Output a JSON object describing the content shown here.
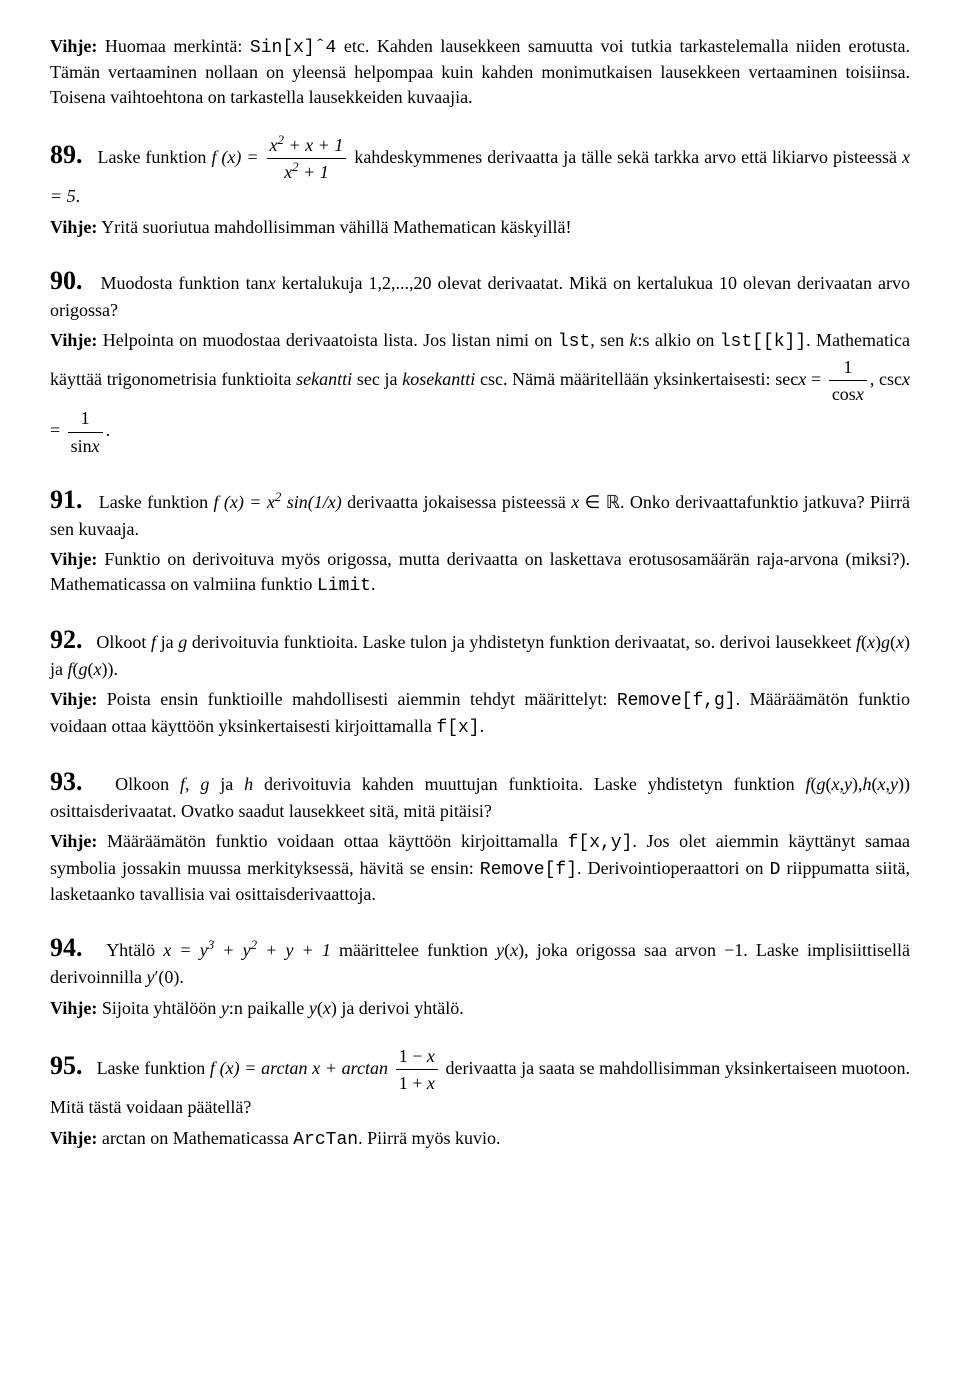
{
  "intro_hint": {
    "label": "Vihje:",
    "part1": "Huomaa merkintä: ",
    "code": "Sin[x]ˆ4",
    "part2": " etc. Kahden lausekkeen samuutta voi tutkia tarkastelemalla niiden erotusta. Tämän vertaaminen nollaan on yleensä helpompaa kuin kahden monimutkaisen lausekkeen vertaaminen toisiinsa. Toisena vaihtoehtona on tarkastella lausekkeiden kuvaajia."
  },
  "p89": {
    "num": "89.",
    "a": "Laske funktion ",
    "fx": "f (x) = ",
    "frac_num": "x² + x + 1",
    "frac_den": "x² + 1",
    "b": " kahdeskymmenes derivaatta ja tälle sekä tarkka arvo että likiarvo pisteessä ",
    "c": "x = 5.",
    "hint_label": "Vihje:",
    "hint": " Yritä suoriutua mahdollisimman vähillä Mathematican käskyillä!"
  },
  "p90": {
    "num": "90.",
    "a": "Muodosta funktion tan",
    "b": " kertalukuja 1,2,...,20 olevat derivaatat. Mikä on kertalukua 10 olevan derivaatan arvo origossa?",
    "hint_label": "Vihje:",
    "h1": " Helpointa on muodostaa derivaatoista lista. Jos listan nimi on ",
    "code1": "lst",
    "h2": ", sen ",
    "h3": ":s alkio on ",
    "code2": "lst[[k]]",
    "h4": ". Mathematica käyttää trigonometrisia funktioita ",
    "it1": "sekantti",
    "h5": " sec ja ",
    "it2": "kosekantti",
    "h6": " csc. Nämä määritellään yksinkertaisesti: sec",
    "h7": " = ",
    "f1n": "1",
    "f1d": "cos x",
    "h8": ", csc",
    "h9": " = ",
    "f2n": "1",
    "f2d": "sin x",
    "h10": "."
  },
  "p91": {
    "num": "91.",
    "a": "Laske funktion ",
    "fx": "f (x) = x² sin(1/x)",
    "b": " derivaatta jokaisessa pisteessä ",
    "c": ". Onko derivaattafunktio jatkuva? Piirrä sen kuvaaja.",
    "hint_label": "Vihje:",
    "h1": " Funktio on derivoituva myös origossa, mutta derivaatta on laskettava erotusosamäärän raja-arvona (miksi?). Mathematicassa on valmiina funktio ",
    "code": "Limit",
    "h2": "."
  },
  "p92": {
    "num": "92.",
    "a": "Olkoot ",
    "b": " ja ",
    "c": " derivoituvia funktioita. Laske tulon ja yhdistetyn funktion derivaatat, so. derivoi lausekkeet ",
    "d": " ja ",
    "e": ".",
    "hint_label": "Vihje:",
    "h1": " Poista ensin funktioille mahdollisesti aiemmin tehdyt määrittelyt: ",
    "code1": "Remove[f,g]",
    "h2": ". Määräämätön funktio voidaan ottaa käyttöön yksinkertaisesti kirjoittamalla ",
    "code2": "f[x]",
    "h3": "."
  },
  "p93": {
    "num": "93.",
    "a": "Olkoon ",
    "b": " ja ",
    "c": " derivoituvia kahden muuttujan funktioita. Laske yhdistetyn funktion ",
    "d": " osittaisderivaatat. Ovatko saadut lausekkeet sitä, mitä pitäisi?",
    "hint_label": "Vihje:",
    "h1": " Määräämätön funktio voidaan ottaa käyttöön kirjoittamalla ",
    "code1": "f[x,y]",
    "h2": ". Jos olet aiemmin käyttänyt samaa symbolia jossakin muussa merkityksessä, hävitä se ensin: ",
    "code2": "Remove[f]",
    "h3": ". Derivointioperaattori on ",
    "code3": "D",
    "h4": " riippumatta siitä, lasketaanko tavallisia vai osittaisderivaattoja."
  },
  "p94": {
    "num": "94.",
    "a": "Yhtälö ",
    "eq": "x = y³ + y² + y + 1",
    "b": " määrittelee funktion ",
    "c": ", joka origossa saa arvon −1. Laske implisiittisellä derivoinnilla ",
    "d": ".",
    "hint_label": "Vihje:",
    "h1": " Sijoita yhtälöön ",
    "h2": ":n paikalle ",
    "h3": " ja derivoi yhtälö."
  },
  "p95": {
    "num": "95.",
    "a": "Laske funktion ",
    "fx": "f (x) = arctan x + arctan",
    "fn": "1 − x",
    "fd": "1 + x",
    "b": " derivaatta ja saata se mahdollisimman yksinkertaiseen muotoon. Mitä tästä voidaan päätellä?",
    "hint_label": "Vihje:",
    "h1": " arctan on Mathematicassa ",
    "code": "ArcTan",
    "h2": ". Piirrä myös kuvio."
  }
}
